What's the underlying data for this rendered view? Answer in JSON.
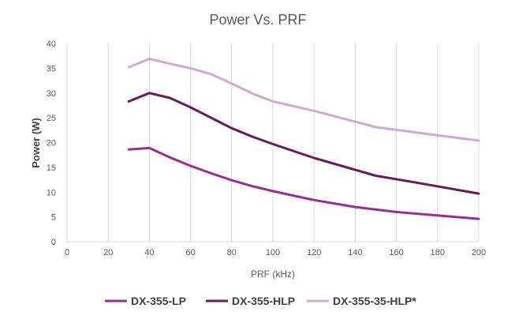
{
  "chart_data": {
    "type": "line",
    "title": "Power Vs. PRF",
    "xlabel": "PRF (kHz)",
    "ylabel": "Power (W)",
    "xlim": [
      0,
      200
    ],
    "ylim": [
      0,
      40
    ],
    "xticks": [
      "0",
      "20",
      "40",
      "60",
      "80",
      "100",
      "120",
      "140",
      "160",
      "180",
      "200"
    ],
    "yticks": [
      "0",
      "5",
      "10",
      "15",
      "20",
      "25",
      "30",
      "35",
      "40"
    ],
    "grid": "vertical",
    "legend_position": "bottom",
    "series": [
      {
        "name": "DX-355-LP",
        "color": "#9b2d8f",
        "x": [
          30,
          40,
          50,
          60,
          70,
          80,
          90,
          100,
          120,
          140,
          160,
          180,
          200
        ],
        "y": [
          18.6,
          18.9,
          17.0,
          15.3,
          13.8,
          12.4,
          11.2,
          10.2,
          8.4,
          7.0,
          6.0,
          5.3,
          4.6
        ]
      },
      {
        "name": "DX-355-HLP",
        "color": "#6b1a5e",
        "x": [
          30,
          40,
          50,
          60,
          70,
          80,
          90,
          100,
          120,
          130,
          150,
          170,
          200
        ],
        "y": [
          28.3,
          30.0,
          29.0,
          27.1,
          25.0,
          22.9,
          21.2,
          19.7,
          16.9,
          15.7,
          13.3,
          11.9,
          9.7
        ]
      },
      {
        "name": "DX-355-35-HLP*",
        "color": "#d1a9cf",
        "x": [
          30,
          40,
          50,
          60,
          70,
          80,
          90,
          100,
          120,
          140,
          150,
          170,
          200
        ],
        "y": [
          35.2,
          36.9,
          35.9,
          35.0,
          33.8,
          31.9,
          29.9,
          28.3,
          26.4,
          24.2,
          23.1,
          22.0,
          20.4
        ]
      }
    ]
  }
}
